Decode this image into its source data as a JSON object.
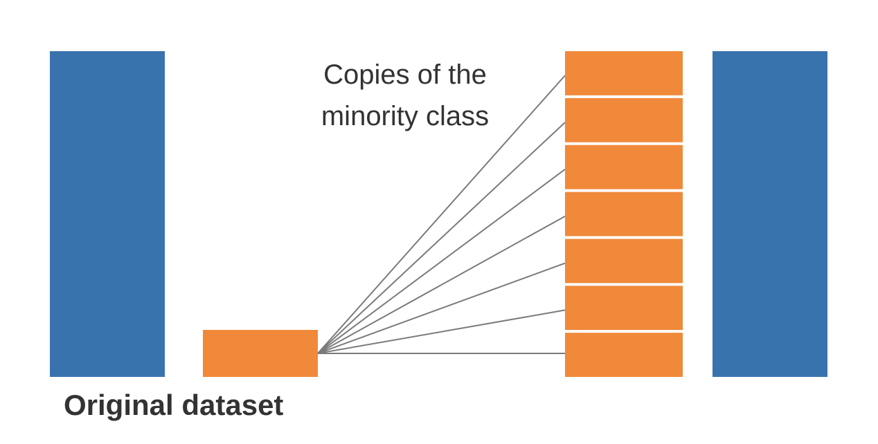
{
  "annotation": {
    "line1": "Copies of the",
    "line2": "minority class"
  },
  "caption": "Original dataset",
  "colors": {
    "majority": "#3873ad",
    "minority": "#f0893a",
    "connector": "#7a7a7a",
    "text": "#333333"
  },
  "original_dataset": {
    "majority_bars": 1,
    "minority_bars": 1
  },
  "oversampled_dataset": {
    "minority_copies": 7,
    "majority_bars": 1
  }
}
